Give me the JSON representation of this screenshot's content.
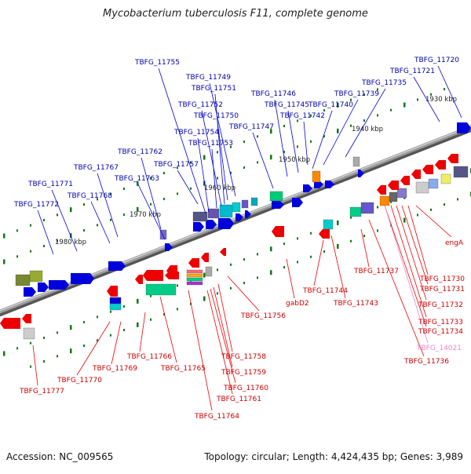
{
  "title": "Mycobacterium tuberculosis F11, complete genome",
  "footer": {
    "accession": "Accession: NC_009565",
    "summary": "Topology: circular; Length: 4,424,435 bp; Genes: 3,989"
  },
  "colors": {
    "forward_cds": "#0000dd",
    "reverse_cds": "#ee0000",
    "forward_label": "#0000aa",
    "reverse_label": "#cc0000",
    "pseudo_label": "#ee88cc",
    "ruler": "#777777",
    "tick": "#117711"
  },
  "kbp_labels": [
    "1930 kbp",
    "1940 kbp",
    "1950 kbp",
    "1960 kbp",
    "1970 kbp",
    "1980 kbp"
  ],
  "top_labels": [
    "TBFG_11720",
    "TBFG_11721",
    "TBFG_11735",
    "TBFG_11739",
    "TBFG_11740",
    "TBFG_11742",
    "TBFG_11745",
    "TBFG_11746",
    "TBFG_11747",
    "TBFG_11749",
    "TBFG_11750",
    "TBFG_11751",
    "TBFG_11752",
    "TBFG_11753",
    "TBFG_11754",
    "TBFG_11755",
    "TBFG_11757",
    "TBFG_11762",
    "TBFG_11763",
    "TBFG_11767",
    "TBFG_11768",
    "TBFG_11771",
    "TBFG_11772"
  ],
  "bottom_labels": [
    "engA",
    "TBFG_11730",
    "TBFG_11731",
    "TBFG_11732",
    "TBFG_11733",
    "TBFG_11734",
    "TBFG_14021",
    "TBFG_11736",
    "TBFG_11737",
    "TBFG_11743",
    "TBFG_11744",
    "gabD2",
    "TBFG_11756",
    "TBFG_11758",
    "TBFG_11759",
    "TBFG_11760",
    "TBFG_11761",
    "TBFG_11764",
    "TBFG_11765",
    "TBFG_11766",
    "TBFG_11769",
    "TBFG_11770",
    "TBFG_11777"
  ]
}
